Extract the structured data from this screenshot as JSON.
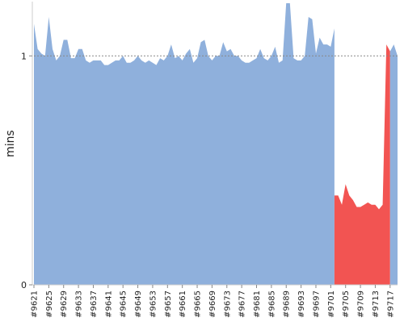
{
  "chart_data": {
    "type": "area",
    "title": "",
    "xlabel": "",
    "ylabel": "mins",
    "ylim": [
      0,
      1.23
    ],
    "y_ticks": [
      0,
      1
    ],
    "y_tick_labels": [
      "0",
      "1"
    ],
    "reference_line": {
      "y": 1,
      "style": "dashed"
    },
    "grid": false,
    "legend": "none",
    "x_tick_labels": [
      "#9621",
      "#9625",
      "#9629",
      "#9633",
      "#9637",
      "#9641",
      "#9645",
      "#9649",
      "#9653",
      "#9657",
      "#9661",
      "#9665",
      "#9669",
      "#9673",
      "#9677",
      "#9681",
      "#9685",
      "#9689",
      "#9693",
      "#9697",
      "#9701",
      "#9705",
      "#9709",
      "#9713",
      "#9717"
    ],
    "x_range": [
      9621,
      9719
    ],
    "colors": {
      "normal": "#8fb0dc",
      "regression": "#f25452",
      "reference": "#888888",
      "axis": "#cccccc"
    },
    "series": [
      {
        "color": "#8fb0dc",
        "x": [
          9621,
          9622,
          9623,
          9624,
          9625,
          9626,
          9627,
          9628,
          9629,
          9630,
          9631,
          9632,
          9633,
          9634,
          9635,
          9636,
          9637,
          9638,
          9639,
          9640,
          9641,
          9642,
          9643,
          9644,
          9645,
          9646,
          9647,
          9648,
          9649,
          9650,
          9651,
          9652,
          9653,
          9654,
          9655,
          9656,
          9657,
          9658,
          9659,
          9660,
          9661,
          9662,
          9663,
          9664,
          9665,
          9666,
          9667,
          9668,
          9669,
          9670,
          9671,
          9672,
          9673,
          9674,
          9675,
          9676,
          9677,
          9678,
          9679,
          9680,
          9681,
          9682,
          9683,
          9684,
          9685,
          9686,
          9687,
          9688,
          9689,
          9690,
          9691,
          9692,
          9693,
          9694,
          9695,
          9696,
          9697,
          9698,
          9699,
          9700,
          9701,
          9702
        ],
        "values": [
          1.14,
          1.03,
          1.01,
          1.0,
          1.17,
          1.03,
          0.98,
          1.0,
          1.07,
          1.07,
          0.99,
          0.99,
          1.03,
          1.03,
          0.98,
          0.97,
          0.98,
          0.98,
          0.98,
          0.96,
          0.96,
          0.97,
          0.98,
          0.98,
          1.0,
          0.97,
          0.97,
          0.98,
          1.0,
          0.98,
          0.97,
          0.98,
          0.97,
          0.96,
          0.99,
          0.98,
          1.0,
          1.05,
          0.99,
          1.0,
          0.98,
          1.01,
          1.03,
          0.97,
          0.99,
          1.06,
          1.07,
          1.0,
          0.98,
          1.0,
          1.0,
          1.06,
          1.02,
          1.03,
          1.0,
          1.0,
          0.98,
          0.97,
          0.97,
          0.98,
          0.99,
          1.03,
          0.99,
          0.98,
          1.0,
          1.04,
          0.97,
          0.98,
          1.23,
          1.23,
          0.99,
          0.98,
          0.98,
          1.0,
          1.17,
          1.16,
          1.01,
          1.08,
          1.05,
          1.05,
          1.04,
          1.12
        ]
      },
      {
        "color": "#f25452",
        "x": [
          9702,
          9703,
          9704,
          9705,
          9706,
          9707,
          9708,
          9709,
          9710,
          9711,
          9712,
          9713,
          9714,
          9715,
          9716,
          9717
        ],
        "values": [
          0.39,
          0.39,
          0.35,
          0.44,
          0.39,
          0.37,
          0.34,
          0.34,
          0.35,
          0.36,
          0.35,
          0.35,
          0.33,
          0.35,
          1.05,
          1.02
        ]
      },
      {
        "color": "#8fb0dc",
        "x": [
          9717,
          9718,
          9719
        ],
        "values": [
          1.02,
          1.05,
          1.0
        ]
      }
    ]
  }
}
